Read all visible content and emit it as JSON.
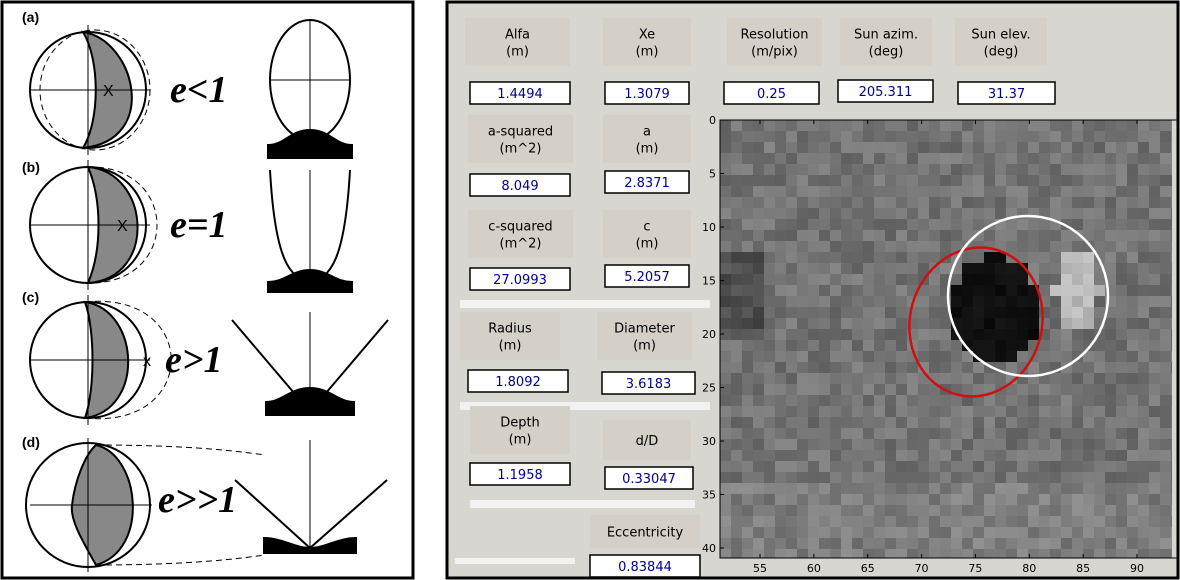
{
  "figure": {
    "rows": [
      {
        "label": "(a)",
        "marker": "X",
        "equation": "e<1"
      },
      {
        "label": "(b)",
        "marker": "X",
        "equation": "e=1"
      },
      {
        "label": "(c)",
        "marker": "x",
        "equation": "e>1"
      },
      {
        "label": "(d)",
        "equation": "e>>1"
      }
    ]
  },
  "gui": {
    "fields": [
      {
        "label": [
          "Alfa",
          "(m)"
        ],
        "value": "1.4494"
      },
      {
        "label": [
          "Xe",
          "(m)"
        ],
        "value": "1.3079"
      },
      {
        "label": [
          "Resolution",
          "(m/pix)"
        ],
        "value": "0.25"
      },
      {
        "label": [
          "Sun azim.",
          "(deg)"
        ],
        "value": "205.311"
      },
      {
        "label": [
          "Sun elev.",
          "(deg)"
        ],
        "value": "31.37"
      },
      {
        "label": [
          "a-squared",
          "(m^2)"
        ],
        "value": "8.049"
      },
      {
        "label": [
          "a",
          "(m)"
        ],
        "value": "2.8371"
      },
      {
        "label": [
          "c-squared",
          "(m^2)"
        ],
        "value": "27.0993"
      },
      {
        "label": [
          "c",
          "(m)"
        ],
        "value": "5.2057"
      },
      {
        "label": [
          "Radius",
          "(m)"
        ],
        "value": "1.8092"
      },
      {
        "label": [
          "Diameter",
          "(m)"
        ],
        "value": "3.6183"
      },
      {
        "label": [
          "Depth",
          "(m)"
        ],
        "value": "1.1958"
      },
      {
        "label": [
          "d/D"
        ],
        "value": "0.33047"
      },
      {
        "label": [
          "Eccentricity"
        ],
        "value": "0.83844"
      }
    ],
    "image": {
      "xticks": [
        55,
        60,
        65,
        70,
        75,
        80,
        85,
        90
      ],
      "yticks": [
        0,
        5,
        10,
        15,
        20,
        25,
        30,
        35,
        40
      ]
    }
  }
}
